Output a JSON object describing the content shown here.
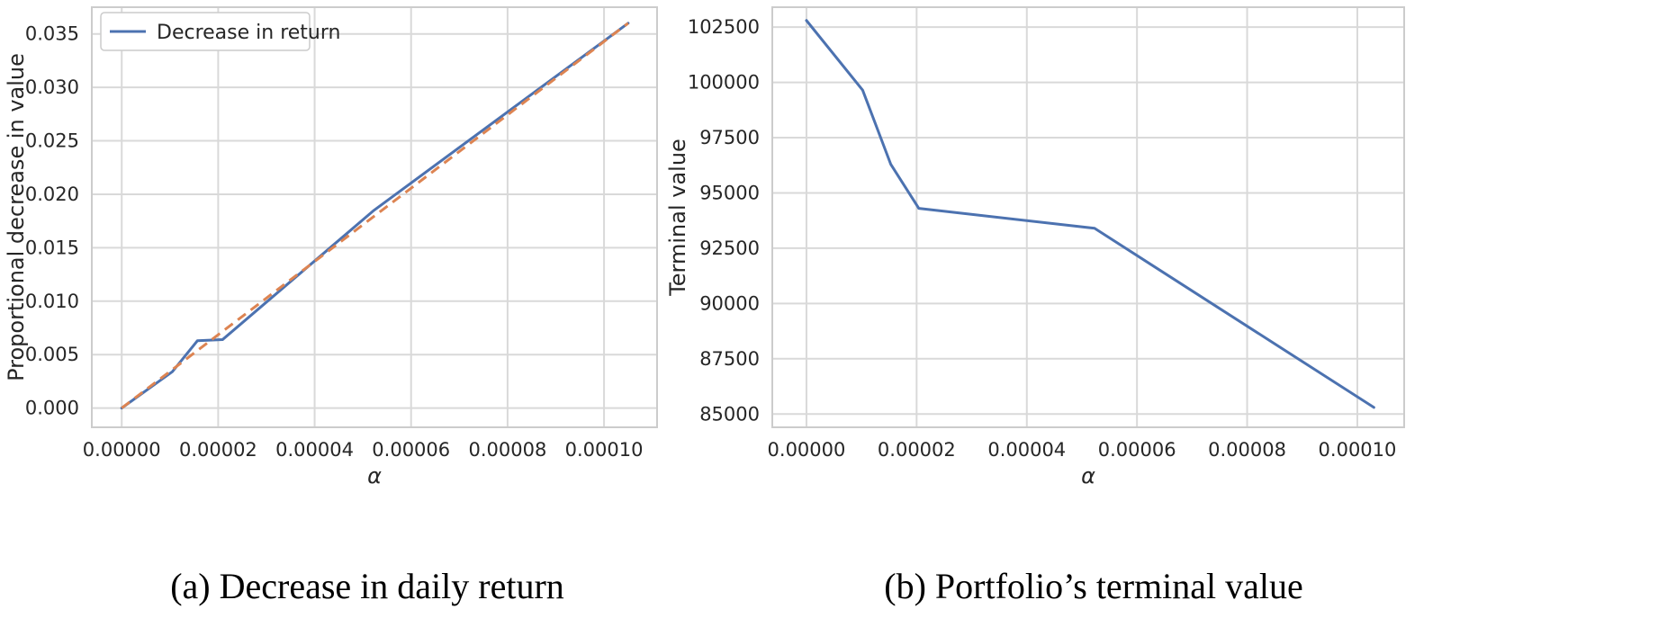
{
  "colors": {
    "series_blue": "#4c72b0",
    "series_orange": "#dd8452",
    "grid": "#d9d9d9",
    "frame": "#cccccc",
    "text": "#262626"
  },
  "chart_data": [
    {
      "type": "line",
      "caption": "(a) Decrease in daily return",
      "xlabel": "α",
      "ylabel": "Proportional decrease in value",
      "xlim": [
        -6.2e-06,
        0.000111
      ],
      "ylim": [
        -0.0018,
        0.0375
      ],
      "xticks": [
        0,
        2e-05,
        4e-05,
        6e-05,
        8e-05,
        0.0001
      ],
      "xtick_labels": [
        "0.00000",
        "0.00002",
        "0.00004",
        "0.00006",
        "0.00008",
        "0.00010"
      ],
      "yticks": [
        0,
        0.005,
        0.01,
        0.015,
        0.02,
        0.025,
        0.03,
        0.035
      ],
      "ytick_labels": [
        "0.000",
        "0.005",
        "0.010",
        "0.015",
        "0.020",
        "0.025",
        "0.030",
        "0.035"
      ],
      "grid": true,
      "legend": {
        "position": "top-left",
        "entries": [
          "Decrease in return"
        ]
      },
      "series": [
        {
          "name": "Decrease in return",
          "color": "#4c72b0",
          "style": "solid",
          "x": [
            0,
            1.05e-05,
            1.57e-05,
            2.09e-05,
            5.23e-05,
            0.000105
          ],
          "y": [
            0,
            0.0034,
            0.0063,
            0.0064,
            0.0185,
            0.036
          ]
        },
        {
          "color": "#dd8452",
          "style": "dashed",
          "x": [
            0,
            0.000105
          ],
          "y": [
            0,
            0.036
          ]
        }
      ]
    },
    {
      "type": "line",
      "caption": "(b) Portfolio’s terminal value",
      "xlabel": "α",
      "ylabel": "Terminal value",
      "xlim": [
        -6.2e-06,
        0.0001085
      ],
      "ylim": [
        84400,
        103400
      ],
      "xticks": [
        0,
        2e-05,
        4e-05,
        6e-05,
        8e-05,
        0.0001
      ],
      "xtick_labels": [
        "0.00000",
        "0.00002",
        "0.00004",
        "0.00006",
        "0.00008",
        "0.00010"
      ],
      "yticks": [
        85000,
        87500,
        90000,
        92500,
        95000,
        97500,
        100000,
        102500
      ],
      "ytick_labels": [
        "85000",
        "87500",
        "90000",
        "92500",
        "95000",
        "97500",
        "100000",
        "102500"
      ],
      "grid": true,
      "series": [
        {
          "color": "#4c72b0",
          "style": "solid",
          "x": [
            0,
            1.02e-05,
            1.53e-05,
            2.04e-05,
            5.23e-05,
            0.000103
          ],
          "y": [
            102800,
            99650,
            96300,
            94300,
            93400,
            85300
          ]
        }
      ]
    }
  ]
}
